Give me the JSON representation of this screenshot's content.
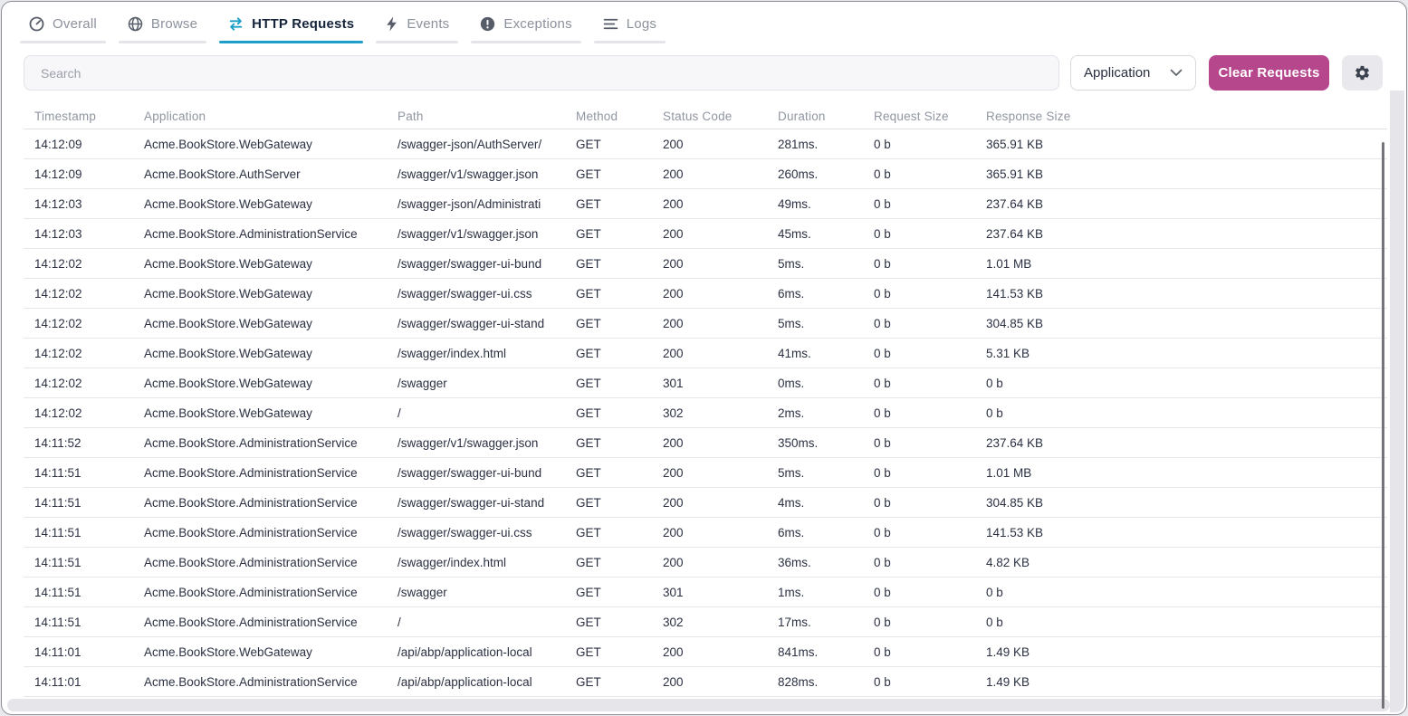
{
  "tabs": [
    {
      "label": "Overall",
      "icon": "gauge-icon",
      "active": false
    },
    {
      "label": "Browse",
      "icon": "globe-icon",
      "active": false
    },
    {
      "label": "HTTP Requests",
      "icon": "swap-arrows-icon",
      "active": true
    },
    {
      "label": "Events",
      "icon": "lightning-icon",
      "active": false
    },
    {
      "label": "Exceptions",
      "icon": "exclamation-icon",
      "active": false
    },
    {
      "label": "Logs",
      "icon": "logs-icon",
      "active": false
    }
  ],
  "toolbar": {
    "search_placeholder": "Search",
    "filter_selected": "Application",
    "clear_button_label": "Clear Requests",
    "settings_icon": "gear-icon"
  },
  "colors": {
    "accent_teal": "#1e9fc7",
    "accent_magenta": "#b6478d",
    "text_dark": "#2b3142",
    "text_muted": "#9096a1",
    "row_divider": "#e5e5ea"
  },
  "table": {
    "columns": [
      "Timestamp",
      "Application",
      "Path",
      "Method",
      "Status Code",
      "Duration",
      "Request Size",
      "Response Size"
    ],
    "rows": [
      [
        "14:12:09",
        "Acme.BookStore.WebGateway",
        "/swagger-json/AuthServer/",
        "GET",
        "200",
        "281ms.",
        "0 b",
        "365.91 KB"
      ],
      [
        "14:12:09",
        "Acme.BookStore.AuthServer",
        "/swagger/v1/swagger.json",
        "GET",
        "200",
        "260ms.",
        "0 b",
        "365.91 KB"
      ],
      [
        "14:12:03",
        "Acme.BookStore.WebGateway",
        "/swagger-json/Administrati",
        "GET",
        "200",
        "49ms.",
        "0 b",
        "237.64 KB"
      ],
      [
        "14:12:03",
        "Acme.BookStore.AdministrationService",
        "/swagger/v1/swagger.json",
        "GET",
        "200",
        "45ms.",
        "0 b",
        "237.64 KB"
      ],
      [
        "14:12:02",
        "Acme.BookStore.WebGateway",
        "/swagger/swagger-ui-bund",
        "GET",
        "200",
        "5ms.",
        "0 b",
        "1.01 MB"
      ],
      [
        "14:12:02",
        "Acme.BookStore.WebGateway",
        "/swagger/swagger-ui.css",
        "GET",
        "200",
        "6ms.",
        "0 b",
        "141.53 KB"
      ],
      [
        "14:12:02",
        "Acme.BookStore.WebGateway",
        "/swagger/swagger-ui-stand",
        "GET",
        "200",
        "5ms.",
        "0 b",
        "304.85 KB"
      ],
      [
        "14:12:02",
        "Acme.BookStore.WebGateway",
        "/swagger/index.html",
        "GET",
        "200",
        "41ms.",
        "0 b",
        "5.31 KB"
      ],
      [
        "14:12:02",
        "Acme.BookStore.WebGateway",
        "/swagger",
        "GET",
        "301",
        "0ms.",
        "0 b",
        "0 b"
      ],
      [
        "14:12:02",
        "Acme.BookStore.WebGateway",
        "/",
        "GET",
        "302",
        "2ms.",
        "0 b",
        "0 b"
      ],
      [
        "14:11:52",
        "Acme.BookStore.AdministrationService",
        "/swagger/v1/swagger.json",
        "GET",
        "200",
        "350ms.",
        "0 b",
        "237.64 KB"
      ],
      [
        "14:11:51",
        "Acme.BookStore.AdministrationService",
        "/swagger/swagger-ui-bund",
        "GET",
        "200",
        "5ms.",
        "0 b",
        "1.01 MB"
      ],
      [
        "14:11:51",
        "Acme.BookStore.AdministrationService",
        "/swagger/swagger-ui-stand",
        "GET",
        "200",
        "4ms.",
        "0 b",
        "304.85 KB"
      ],
      [
        "14:11:51",
        "Acme.BookStore.AdministrationService",
        "/swagger/swagger-ui.css",
        "GET",
        "200",
        "6ms.",
        "0 b",
        "141.53 KB"
      ],
      [
        "14:11:51",
        "Acme.BookStore.AdministrationService",
        "/swagger/index.html",
        "GET",
        "200",
        "36ms.",
        "0 b",
        "4.82 KB"
      ],
      [
        "14:11:51",
        "Acme.BookStore.AdministrationService",
        "/swagger",
        "GET",
        "301",
        "1ms.",
        "0 b",
        "0 b"
      ],
      [
        "14:11:51",
        "Acme.BookStore.AdministrationService",
        "/",
        "GET",
        "302",
        "17ms.",
        "0 b",
        "0 b"
      ],
      [
        "14:11:01",
        "Acme.BookStore.WebGateway",
        "/api/abp/application-local",
        "GET",
        "200",
        "841ms.",
        "0 b",
        "1.49 KB"
      ],
      [
        "14:11:01",
        "Acme.BookStore.AdministrationService",
        "/api/abp/application-local",
        "GET",
        "200",
        "828ms.",
        "0 b",
        "1.49 KB"
      ]
    ]
  }
}
